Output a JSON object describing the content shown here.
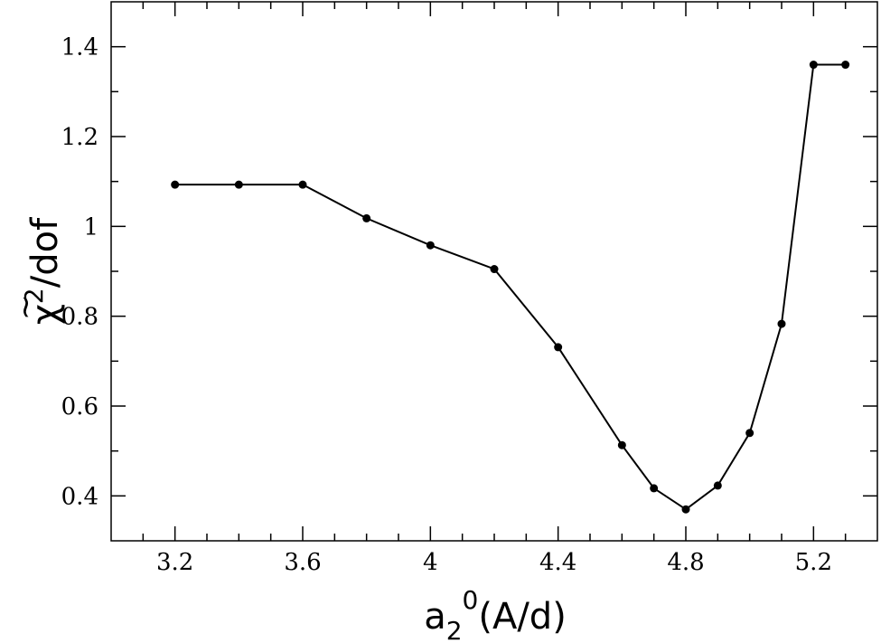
{
  "chart_data": {
    "type": "line",
    "title": "",
    "xlabel": {
      "base": "a",
      "sub": "2",
      "sup": "0",
      "rest": "(A/d)"
    },
    "ylabel": {
      "symbol": "χ",
      "tilde": "~",
      "sup": "2",
      "rest": "/dof"
    },
    "xlim": [
      3.0,
      5.4
    ],
    "ylim": [
      0.3,
      1.5
    ],
    "xticks": [
      3.2,
      3.6,
      4.0,
      4.4,
      4.8,
      5.2
    ],
    "xtick_labels": [
      "3.2",
      "3.6",
      "4",
      "4.4",
      "4.8",
      "5.2"
    ],
    "yticks": [
      0.4,
      0.6,
      0.8,
      1.0,
      1.2,
      1.4
    ],
    "ytick_labels": [
      "0.4",
      "0.6",
      "0.8",
      "1",
      "1.2",
      "1.4"
    ],
    "x_minor_step": 0.1,
    "y_minor_step": 0.1,
    "grid": false,
    "series": [
      {
        "x": [
          3.2,
          3.4,
          3.6,
          3.8,
          4.0,
          4.2,
          4.4,
          4.6,
          4.7,
          4.8,
          4.9,
          5.0,
          5.1,
          5.2,
          5.3
        ],
        "y": [
          1.093,
          1.093,
          1.093,
          1.018,
          0.958,
          0.905,
          0.731,
          0.513,
          0.417,
          0.37,
          0.423,
          0.54,
          0.783,
          1.36,
          1.36
        ],
        "color": "#000000",
        "marker": "circle"
      }
    ]
  }
}
